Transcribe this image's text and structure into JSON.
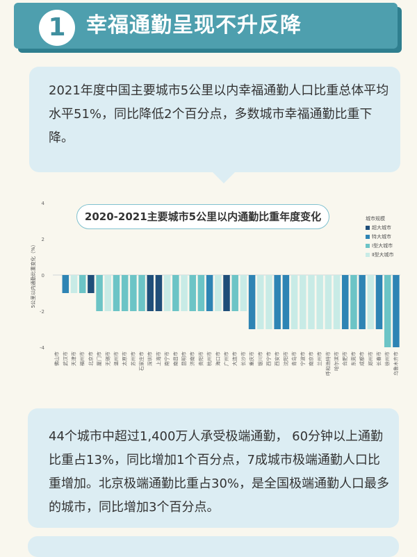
{
  "header": {
    "badge_number": "1",
    "title": "幸福通勤呈现不升反降"
  },
  "intro": {
    "text": "2021年度中国主要城市5公里以内幸福通勤人口比重总体平均水平51%，同比降低2个百分点，多数城市幸福通勤比重下降。"
  },
  "summary": {
    "text": "44个城市中超过1,400万人承受极端通勤， 60分钟以上通勤比重占13%，同比增加1个百分点，7成城市极端通勤人口比重增加。北京极端通勤比重占30%，是全国极端通勤人口最多的城市，同比增加3个百分点。"
  },
  "colors": {
    "super": "#1f4e79",
    "mega": "#2e84b4",
    "type1": "#6cc4c6",
    "type2": "#c8ebe6"
  },
  "chart_data": {
    "type": "bar",
    "title": "2020-2021主要城市5公里以内通勤比重年度变化",
    "ylabel": "5公里以内通勤比重变化（%）",
    "xlabel": "",
    "ylim": [
      -4,
      4
    ],
    "yticks": [
      "4",
      "2",
      "0",
      "-2",
      "-4"
    ],
    "legend_title": "城市规模",
    "legend": [
      {
        "key": "super",
        "label": "超大城市"
      },
      {
        "key": "mega",
        "label": "特大城市"
      },
      {
        "key": "type1",
        "label": "Ⅰ型大城市"
      },
      {
        "key": "type2",
        "label": "Ⅱ型大城市"
      }
    ],
    "categories": [
      "佛山市",
      "武汉市",
      "天津市",
      "福州市",
      "北京市",
      "厦门市",
      "无锡市",
      "温州市",
      "太原市",
      "苏州市",
      "石家庄市",
      "深圳市",
      "上海市",
      "南宁市",
      "南昌市",
      "昆明市",
      "济南市",
      "贵阳市",
      "杭州市",
      "海口市",
      "广州市",
      "大连市",
      "长沙市",
      "重庆市",
      "银川市",
      "西宁市",
      "西安市",
      "沈阳市",
      "青岛市",
      "宁波市",
      "南京市",
      "兰州市",
      "呼和浩特市",
      "哈尔滨市",
      "合肥市",
      "东莞市",
      "成都市",
      "郑州市",
      "长春市",
      "徐州市",
      "乌鲁木齐市"
    ],
    "values": [
      0,
      -1,
      -1,
      -1,
      -1,
      -2,
      -2,
      -2,
      -2,
      -2,
      -2,
      -2,
      -2,
      -2,
      -2,
      -2,
      -2,
      -2,
      -2,
      -2,
      -2,
      -2,
      -2,
      -3,
      -3,
      -3,
      -3,
      -3,
      -3,
      -3,
      -3,
      -3,
      -3,
      -3,
      -3,
      -3,
      -3,
      -3,
      -3,
      -4,
      -4
    ],
    "groups": [
      "type1",
      "mega",
      "type2",
      "type1",
      "super",
      "type1",
      "type2",
      "type1",
      "type1",
      "type1",
      "type1",
      "super",
      "super",
      "type2",
      "type1",
      "type2",
      "type1",
      "type1",
      "mega",
      "type2",
      "super",
      "type1",
      "type2",
      "mega",
      "type2",
      "type2",
      "mega",
      "mega",
      "type2",
      "type2",
      "type2",
      "type2",
      "type2",
      "type2",
      "mega",
      "type1",
      "mega",
      "type2",
      "mega",
      "type1",
      "mega"
    ]
  }
}
